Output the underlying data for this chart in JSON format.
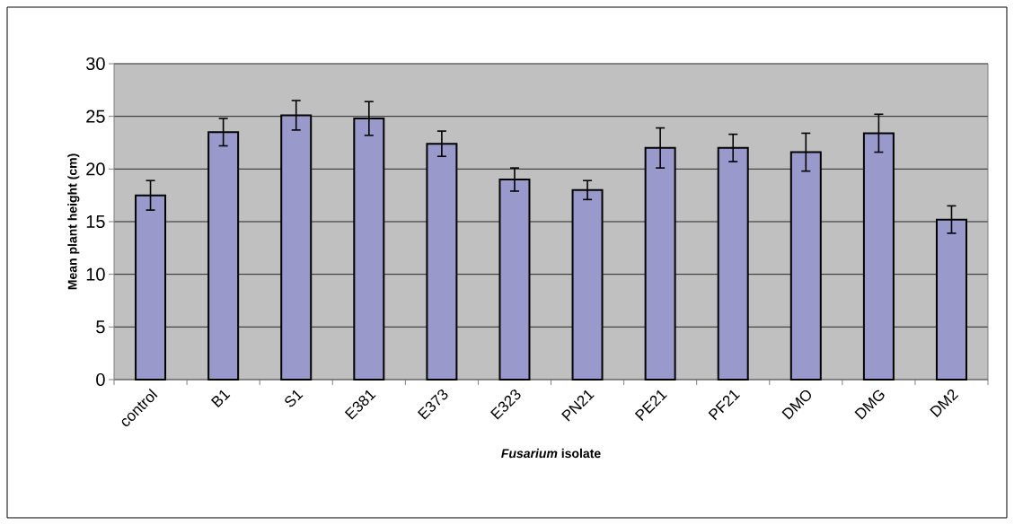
{
  "chart_data": {
    "type": "bar",
    "xlabel": "*Fusarium* isolate",
    "ylabel": "Mean plant height (cm)",
    "categories": [
      "control",
      "B1",
      "S1",
      "E381",
      "E373",
      "E323",
      "PN21",
      "PE21",
      "PF21",
      "DMO",
      "DMG",
      "DM2"
    ],
    "values": [
      17.5,
      23.5,
      25.1,
      24.8,
      22.4,
      19.0,
      18.0,
      22.0,
      22.0,
      21.6,
      23.4,
      15.2
    ],
    "errors": [
      1.4,
      1.3,
      1.4,
      1.6,
      1.2,
      1.1,
      0.9,
      1.9,
      1.3,
      1.8,
      1.8,
      1.3
    ],
    "color": "#9999cc",
    "ylim": [
      0,
      30
    ],
    "yticks": [
      0,
      5,
      10,
      15,
      20,
      25,
      30
    ],
    "grid": "y"
  }
}
